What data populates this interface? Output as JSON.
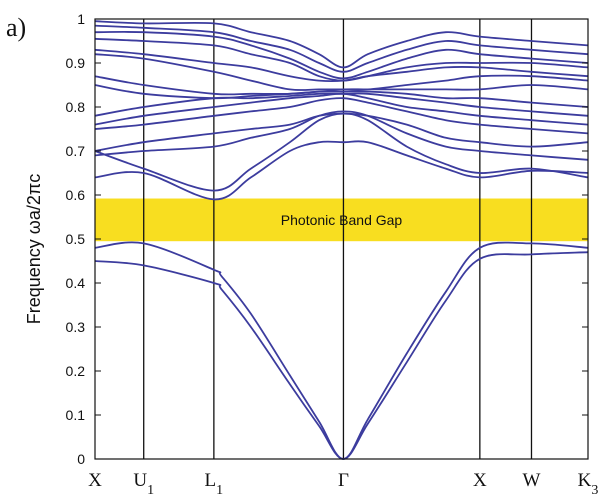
{
  "chart_data": {
    "type": "line",
    "panel_label": "a)",
    "title": "",
    "xlabel": "",
    "ylabel": "Frequency ωa/2πc",
    "ylim": [
      0,
      1
    ],
    "yticks": [
      0,
      0.1,
      0.2,
      0.3,
      0.4,
      0.5,
      0.6,
      0.7,
      0.8,
      0.9,
      1
    ],
    "ytick_labels": [
      "0",
      "0.1",
      "0.2",
      "0.3",
      "0.4",
      "0.5",
      "0.6",
      "0.7",
      "0.8",
      "0.9",
      "1"
    ],
    "xlim": [
      0,
      5.06
    ],
    "kpoints": [
      {
        "label": "X",
        "sub": "",
        "x": 0
      },
      {
        "label": "U",
        "sub": "1",
        "x": 0.5
      },
      {
        "label": "L",
        "sub": "1",
        "x": 1.22
      },
      {
        "label": "Γ",
        "sub": "",
        "x": 2.55
      },
      {
        "label": "X",
        "sub": "",
        "x": 3.95
      },
      {
        "label": "W",
        "sub": "",
        "x": 4.48
      },
      {
        "label": "K",
        "sub": "3",
        "x": 5.06
      }
    ],
    "gap": {
      "label": "Photonic Band Gap",
      "y0": 0.495,
      "y1": 0.592,
      "color": "#f8de20"
    },
    "line_color": "#3c3c9e",
    "grid": false,
    "series": [
      {
        "x": [
          0,
          0.5,
          1.22,
          1.3,
          1.6,
          2.0,
          2.3,
          2.55,
          2.8,
          3.2,
          3.6,
          3.95,
          4.48,
          5.06
        ],
        "y": [
          0.45,
          0.44,
          0.4,
          0.385,
          0.3,
          0.17,
          0.075,
          0,
          0.08,
          0.22,
          0.36,
          0.455,
          0.465,
          0.47
        ]
      },
      {
        "x": [
          0,
          0.5,
          1.22,
          1.3,
          1.6,
          2.0,
          2.3,
          2.55,
          2.8,
          3.2,
          3.6,
          3.95,
          4.48,
          5.06
        ],
        "y": [
          0.48,
          0.49,
          0.43,
          0.415,
          0.33,
          0.19,
          0.085,
          0,
          0.09,
          0.24,
          0.38,
          0.48,
          0.49,
          0.48
        ]
      },
      {
        "x": [
          0,
          0.5,
          1.22,
          1.6,
          2.0,
          2.3,
          2.55,
          2.8,
          3.2,
          3.6,
          3.95,
          4.48,
          5.06
        ],
        "y": [
          0.64,
          0.65,
          0.59,
          0.64,
          0.7,
          0.72,
          0.72,
          0.72,
          0.69,
          0.66,
          0.64,
          0.655,
          0.65
        ]
      },
      {
        "x": [
          0,
          0.5,
          1.22,
          1.6,
          2.0,
          2.3,
          2.55,
          2.8,
          3.2,
          3.6,
          3.95,
          4.48,
          5.06
        ],
        "y": [
          0.7,
          0.66,
          0.61,
          0.66,
          0.72,
          0.77,
          0.785,
          0.77,
          0.71,
          0.67,
          0.65,
          0.66,
          0.64
        ]
      },
      {
        "x": [
          0,
          0.5,
          1.22,
          1.6,
          2.0,
          2.3,
          2.55,
          2.8,
          3.2,
          3.6,
          3.95,
          4.48,
          5.06
        ],
        "y": [
          0.69,
          0.7,
          0.71,
          0.73,
          0.75,
          0.78,
          0.79,
          0.78,
          0.74,
          0.71,
          0.7,
          0.69,
          0.68
        ]
      },
      {
        "x": [
          0,
          0.5,
          1.22,
          1.6,
          2.0,
          2.3,
          2.55,
          2.8,
          3.2,
          3.6,
          3.95,
          4.48,
          5.06
        ],
        "y": [
          0.7,
          0.72,
          0.74,
          0.75,
          0.76,
          0.78,
          0.785,
          0.78,
          0.76,
          0.73,
          0.72,
          0.71,
          0.72
        ]
      },
      {
        "x": [
          0,
          0.5,
          1.22,
          1.6,
          2.0,
          2.3,
          2.55,
          2.8,
          3.2,
          3.6,
          3.95,
          4.48,
          5.06
        ],
        "y": [
          0.75,
          0.76,
          0.78,
          0.79,
          0.8,
          0.815,
          0.82,
          0.81,
          0.79,
          0.77,
          0.76,
          0.75,
          0.74
        ]
      },
      {
        "x": [
          0,
          0.5,
          1.22,
          1.6,
          2.0,
          2.3,
          2.55,
          2.8,
          3.2,
          3.6,
          3.95,
          4.48,
          5.06
        ],
        "y": [
          0.76,
          0.78,
          0.8,
          0.81,
          0.82,
          0.825,
          0.83,
          0.82,
          0.8,
          0.79,
          0.78,
          0.77,
          0.76
        ]
      },
      {
        "x": [
          0,
          0.5,
          1.22,
          1.6,
          2.0,
          2.3,
          2.55,
          2.8,
          3.2,
          3.6,
          3.95,
          4.48,
          5.06
        ],
        "y": [
          0.78,
          0.8,
          0.82,
          0.82,
          0.825,
          0.83,
          0.83,
          0.83,
          0.82,
          0.81,
          0.8,
          0.79,
          0.78
        ]
      },
      {
        "x": [
          0,
          0.5,
          1.22,
          1.6,
          2.0,
          2.3,
          2.55,
          2.8,
          3.2,
          3.6,
          3.95,
          4.48,
          5.06
        ],
        "y": [
          0.85,
          0.83,
          0.82,
          0.825,
          0.83,
          0.835,
          0.835,
          0.835,
          0.83,
          0.82,
          0.82,
          0.81,
          0.8
        ]
      },
      {
        "x": [
          0,
          0.5,
          1.22,
          1.6,
          2.0,
          2.3,
          2.55,
          2.8,
          3.2,
          3.6,
          3.95,
          4.48,
          5.06
        ],
        "y": [
          0.87,
          0.85,
          0.83,
          0.83,
          0.83,
          0.835,
          0.84,
          0.84,
          0.84,
          0.84,
          0.84,
          0.85,
          0.84
        ]
      },
      {
        "x": [
          0,
          0.5,
          1.22,
          1.6,
          2.0,
          2.3,
          2.55,
          2.8,
          3.2,
          3.6,
          3.95,
          4.48,
          5.06
        ],
        "y": [
          0.92,
          0.91,
          0.88,
          0.86,
          0.84,
          0.84,
          0.84,
          0.84,
          0.85,
          0.86,
          0.87,
          0.87,
          0.86
        ]
      },
      {
        "x": [
          0,
          0.5,
          1.22,
          1.6,
          2.0,
          2.3,
          2.55,
          2.8,
          3.2,
          3.6,
          3.95,
          4.48,
          5.06
        ],
        "y": [
          0.93,
          0.92,
          0.9,
          0.89,
          0.87,
          0.86,
          0.86,
          0.87,
          0.88,
          0.89,
          0.89,
          0.88,
          0.87
        ]
      },
      {
        "x": [
          0,
          0.5,
          1.22,
          1.6,
          2.0,
          2.3,
          2.55,
          2.8,
          3.2,
          3.6,
          3.95,
          4.48,
          5.06
        ],
        "y": [
          0.955,
          0.95,
          0.94,
          0.92,
          0.9,
          0.87,
          0.86,
          0.87,
          0.89,
          0.9,
          0.9,
          0.9,
          0.89
        ]
      },
      {
        "x": [
          0,
          0.5,
          1.22,
          1.6,
          2.0,
          2.3,
          2.55,
          2.8,
          3.2,
          3.6,
          3.95,
          4.48,
          5.06
        ],
        "y": [
          0.97,
          0.97,
          0.96,
          0.94,
          0.91,
          0.88,
          0.865,
          0.88,
          0.91,
          0.93,
          0.92,
          0.91,
          0.9
        ]
      },
      {
        "x": [
          0,
          0.5,
          1.22,
          1.6,
          2.0,
          2.3,
          2.55,
          2.8,
          3.2,
          3.6,
          3.95,
          4.48,
          5.06
        ],
        "y": [
          0.985,
          0.98,
          0.97,
          0.95,
          0.93,
          0.9,
          0.88,
          0.9,
          0.93,
          0.95,
          0.94,
          0.93,
          0.92
        ]
      },
      {
        "x": [
          0,
          0.5,
          1.22,
          1.6,
          2.0,
          2.3,
          2.55,
          2.8,
          3.2,
          3.6,
          3.95,
          4.48,
          5.06
        ],
        "y": [
          0.995,
          0.99,
          0.99,
          0.97,
          0.95,
          0.92,
          0.89,
          0.92,
          0.95,
          0.97,
          0.96,
          0.95,
          0.94
        ]
      }
    ]
  }
}
